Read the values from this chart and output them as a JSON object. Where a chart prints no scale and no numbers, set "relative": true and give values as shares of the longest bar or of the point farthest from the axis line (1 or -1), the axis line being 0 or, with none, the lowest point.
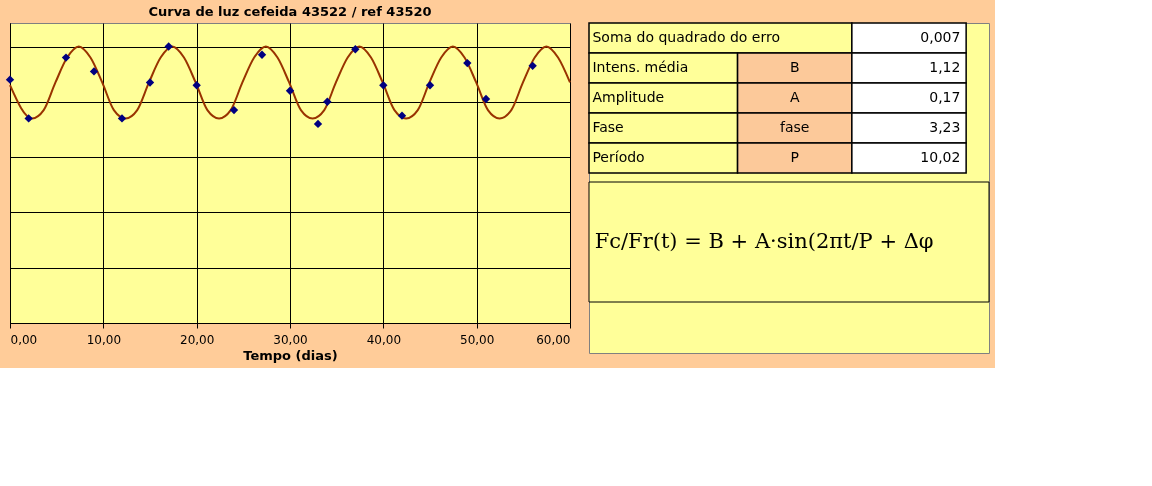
{
  "chart_data": [
    {
      "type": "scatter",
      "title": "Curva de luz cefeida 43522 / ref 43520",
      "xlabel": "Tempo (dias)",
      "relative": true,
      "grid": true,
      "xlim": [
        0,
        60
      ],
      "xticks": [
        {
          "value": 0,
          "label": "0,00"
        },
        {
          "value": 10,
          "label": "10,00"
        },
        {
          "value": 20,
          "label": "20,00"
        },
        {
          "value": 30,
          "label": "30,00"
        },
        {
          "value": 40,
          "label": "40,00"
        },
        {
          "value": 50,
          "label": "50,00"
        },
        {
          "value": 60,
          "label": "60,00"
        }
      ],
      "series": [
        {
          "type": "line",
          "color": "#993300",
          "line_style": "solid",
          "x": [
            0,
            2.36,
            3.61,
            4.87,
            6.12,
            7.37,
            8.62,
            9.88,
            11.13,
            12.38,
            13.63,
            14.89,
            16.14,
            17.39,
            18.64,
            19.89,
            21.15,
            22.4,
            23.65,
            24.9,
            26.16,
            27.41,
            28.66,
            29.91,
            31.17,
            32.42,
            33.67,
            34.92,
            36.18,
            37.43,
            38.68,
            39.93,
            41.19,
            42.44,
            43.69,
            44.94,
            46.2,
            47.45,
            48.7,
            49.95,
            51.21,
            52.46,
            53.71,
            54.96,
            56.22,
            57.47,
            58.72,
            60
          ],
          "values": [
            0.86,
            0.74,
            0.77,
            0.87,
            0.96,
            1,
            0.96,
            0.87,
            0.77,
            0.74,
            0.77,
            0.87,
            0.96,
            1,
            0.96,
            0.87,
            0.77,
            0.74,
            0.77,
            0.87,
            0.96,
            1,
            0.96,
            0.87,
            0.77,
            0.74,
            0.77,
            0.87,
            0.96,
            1,
            0.96,
            0.87,
            0.77,
            0.74,
            0.77,
            0.87,
            0.96,
            1,
            0.96,
            0.87,
            0.77,
            0.74,
            0.77,
            0.87,
            0.96,
            1,
            0.96,
            0.87
          ]
        },
        {
          "type": "scatter",
          "color": "#000080",
          "marker": "diamond",
          "x": [
            0,
            2,
            6,
            9,
            12,
            15,
            17,
            20,
            24,
            27,
            30,
            33,
            34,
            37,
            40,
            42,
            45,
            49,
            51,
            56
          ],
          "values": [
            0.88,
            0.74,
            0.96,
            0.91,
            0.74,
            0.87,
            1,
            0.86,
            0.77,
            0.97,
            0.84,
            0.72,
            0.8,
            0.99,
            0.86,
            0.75,
            0.86,
            0.94,
            0.81,
            0.93
          ]
        }
      ]
    },
    {
      "type": "other",
      "annotations": [
        "Soma do quadrado do erro",
        "0,007",
        "Intens. média",
        "B",
        "1,12",
        "Amplitude",
        "A",
        "0,17",
        "Fase",
        "fase",
        "3,23",
        "Período",
        "P",
        "10,02",
        "Fc/Fr(t) = B + A·sin(2πt/P + Δφ"
      ]
    }
  ]
}
